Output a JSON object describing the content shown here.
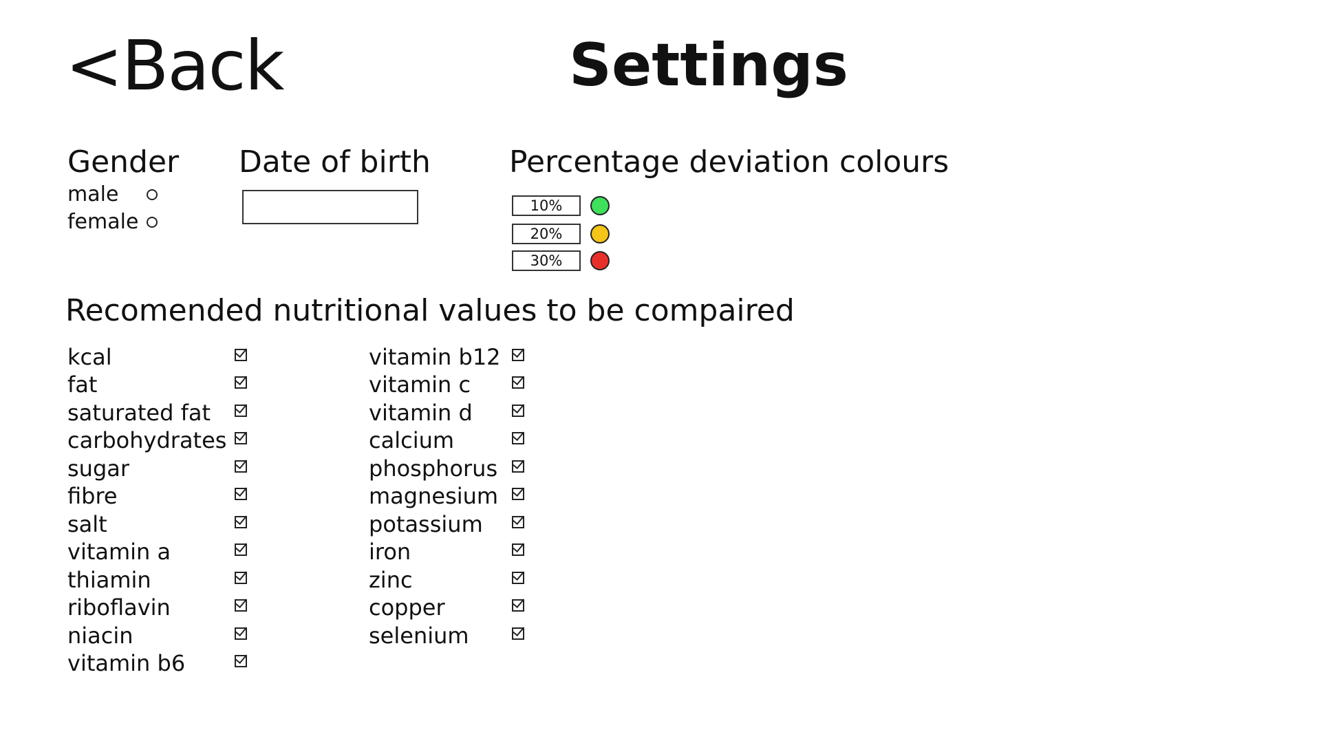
{
  "header": {
    "back_label": "<Back",
    "title": "Settings"
  },
  "gender": {
    "heading": "Gender",
    "options": [
      {
        "label": "male",
        "selected": false
      },
      {
        "label": "female",
        "selected": false
      }
    ]
  },
  "date_of_birth": {
    "heading": "Date of birth",
    "value": ""
  },
  "percentage_deviation": {
    "heading": "Percentage deviation colours",
    "levels": [
      {
        "value": "10%",
        "color": "#3ee05c"
      },
      {
        "value": "20%",
        "color": "#f5c518"
      },
      {
        "value": "30%",
        "color": "#e8302a"
      }
    ]
  },
  "nutrition": {
    "heading": "Recomended nutritional values to be compaired",
    "column_1": [
      {
        "label": "kcal",
        "checked": true
      },
      {
        "label": "fat",
        "checked": true
      },
      {
        "label": "saturated fat",
        "checked": true
      },
      {
        "label": "carbohydrates",
        "checked": true
      },
      {
        "label": "sugar",
        "checked": true
      },
      {
        "label": "fibre",
        "checked": true
      },
      {
        "label": "salt",
        "checked": true
      },
      {
        "label": "vitamin a",
        "checked": true
      },
      {
        "label": "thiamin",
        "checked": true
      },
      {
        "label": "riboflavin",
        "checked": true
      },
      {
        "label": "niacin",
        "checked": true
      },
      {
        "label": "vitamin b6",
        "checked": true
      }
    ],
    "column_2": [
      {
        "label": "vitamin b12",
        "checked": true
      },
      {
        "label": "vitamin c",
        "checked": true
      },
      {
        "label": "vitamin d",
        "checked": true
      },
      {
        "label": "calcium",
        "checked": true
      },
      {
        "label": "phosphorus",
        "checked": true
      },
      {
        "label": "magnesium",
        "checked": true
      },
      {
        "label": "potassium",
        "checked": true
      },
      {
        "label": "iron",
        "checked": true
      },
      {
        "label": "zinc",
        "checked": true
      },
      {
        "label": "copper",
        "checked": true
      },
      {
        "label": "selenium",
        "checked": true
      }
    ]
  }
}
